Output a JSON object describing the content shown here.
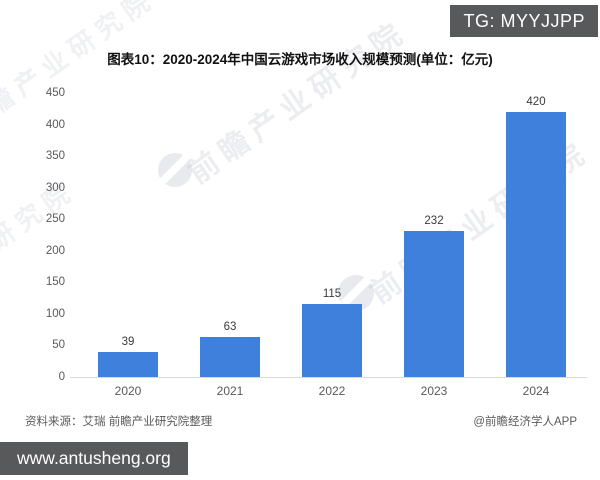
{
  "badges": {
    "top": "TG: MYYJJPP",
    "bottom": "www.antusheng.org"
  },
  "title": "图表10：2020-2024年中国云游戏市场收入规模预测(单位：亿元)",
  "chart_data": {
    "type": "bar",
    "categories": [
      "2020",
      "2021",
      "2022",
      "2023",
      "2024"
    ],
    "values": [
      39,
      63,
      115,
      232,
      420
    ],
    "title": "图表10：2020-2024年中国云游戏市场收入规模预测(单位：亿元)",
    "xlabel": "",
    "ylabel": "",
    "unit": "亿元",
    "ylim": [
      0,
      450
    ],
    "yticks": [
      0,
      50,
      100,
      150,
      200,
      250,
      300,
      350,
      400,
      450
    ],
    "grid": false,
    "legend": "none",
    "bar_color": "#3E80DC"
  },
  "watermark": {
    "text": "前瞻产业研究院"
  },
  "footer": {
    "source": "资料来源：艾瑞 前瞻产业研究院整理",
    "credit": "@前瞻经济学人APP"
  }
}
